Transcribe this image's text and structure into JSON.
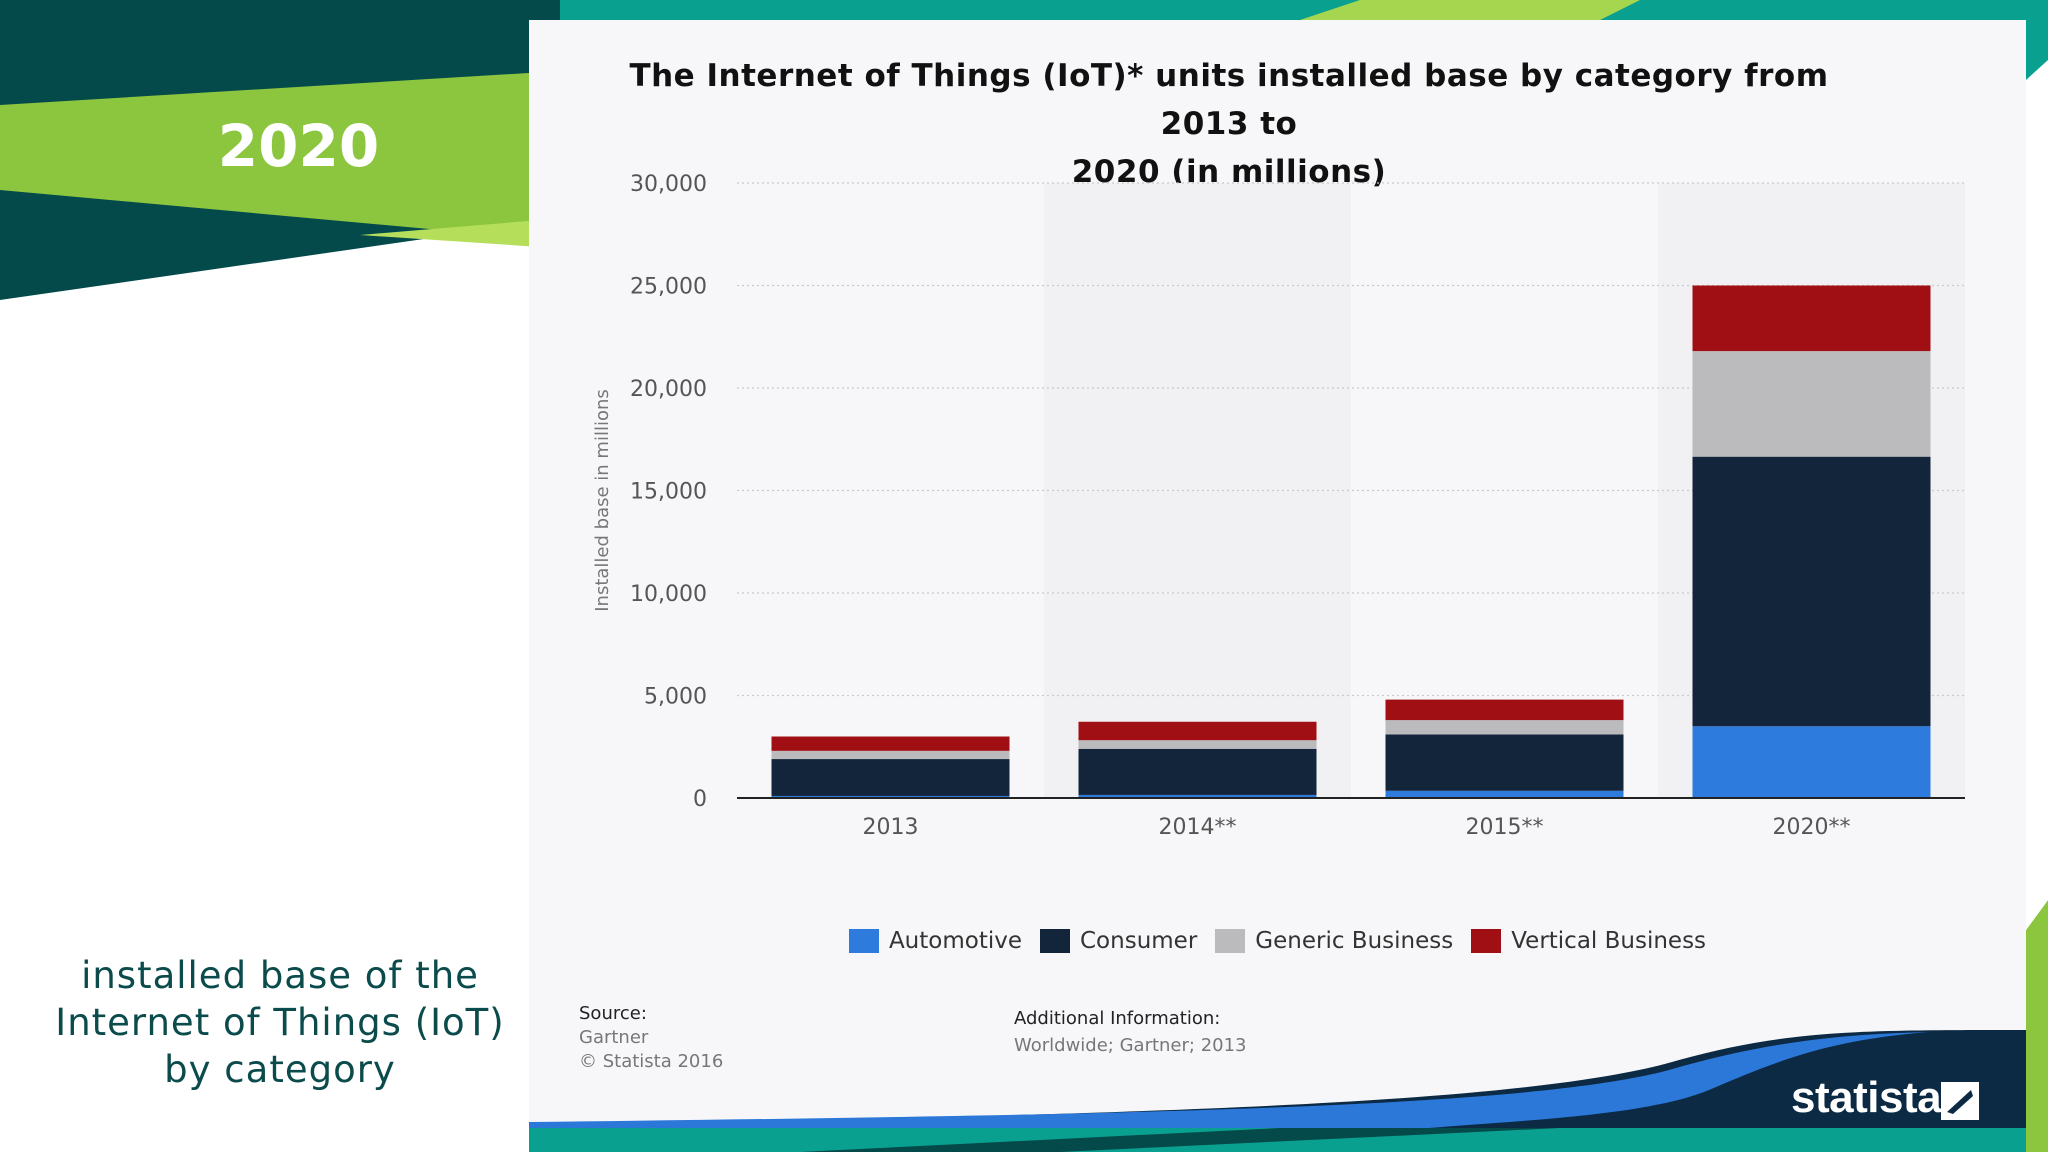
{
  "sidebar": {
    "year": "2020",
    "caption_lines": [
      "installed base of the",
      "Internet of Things (IoT)",
      "by category"
    ]
  },
  "colors": {
    "dark_teal": "#054a4a",
    "lime": "#8cc63f",
    "teal": "#0aa090",
    "navy": "#0c2a44",
    "blue": "#2b78d9"
  },
  "chart_data": {
    "type": "bar",
    "stacked": true,
    "title": "The Internet of Things (IoT)* units installed base by category from 2013 to 2020 (in millions)",
    "title_lines": [
      "The Internet of Things (IoT)* units installed base by category from 2013 to",
      "2020 (in millions)"
    ],
    "ylabel": "Installed base in millions",
    "xlabel": "",
    "categories": [
      "2013",
      "2014**",
      "2015**",
      "2020**"
    ],
    "ylim": [
      0,
      30000
    ],
    "yticks": [
      0,
      5000,
      10000,
      15000,
      20000,
      25000,
      30000
    ],
    "ytick_labels": [
      "0",
      "5,000",
      "10,000",
      "15,000",
      "20,000",
      "25,000",
      "30,000"
    ],
    "grid": true,
    "legend_position": "bottom",
    "series": [
      {
        "name": "Automotive",
        "color": "#2d7bdc",
        "values": [
          100,
          150,
          350,
          3500
        ]
      },
      {
        "name": "Consumer",
        "color": "#12253b",
        "values": [
          1800,
          2250,
          2750,
          13150
        ]
      },
      {
        "name": "Generic Business",
        "color": "#bbbbbe",
        "values": [
          400,
          420,
          700,
          5150
        ]
      },
      {
        "name": "Vertical Business",
        "color": "#a00f13",
        "values": [
          700,
          900,
          1000,
          3200
        ]
      }
    ]
  },
  "footer": {
    "source_label": "Source:",
    "source_value": "Gartner",
    "copyright": "© Statista 2016",
    "addinfo_label": "Additional Information:",
    "addinfo_value": "Worldwide; Gartner; 2013",
    "logo": "statista"
  }
}
